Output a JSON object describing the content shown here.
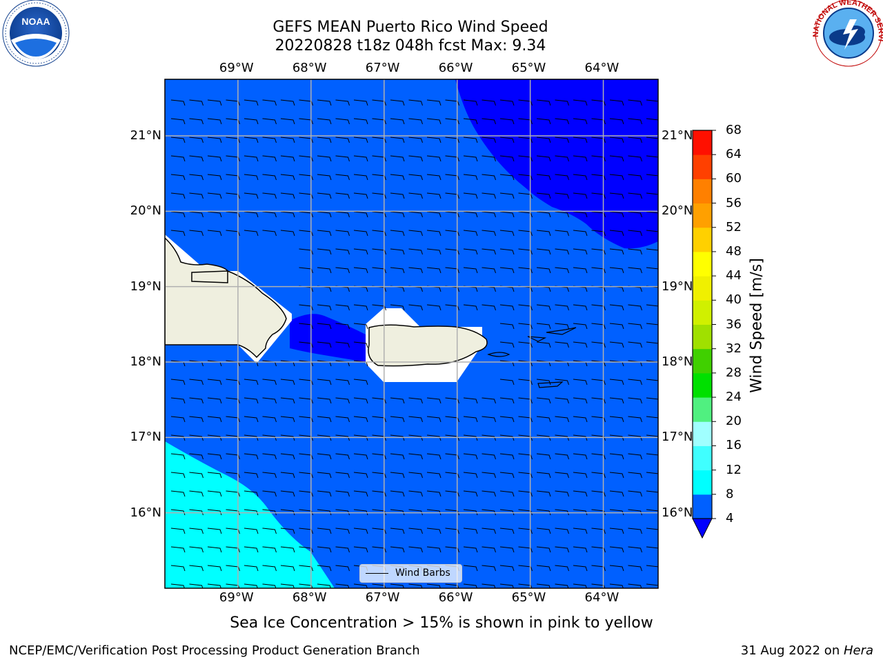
{
  "title": {
    "line1": "GEFS MEAN Puerto Rico Wind Speed",
    "line2": "20220828 t18z 048h fcst   Max: 9.34"
  },
  "axes": {
    "lon_labels": [
      "69°W",
      "68°W",
      "67°W",
      "66°W",
      "65°W",
      "64°W"
    ],
    "lat_labels": [
      "21°N",
      "20°N",
      "19°N",
      "18°N",
      "17°N",
      "16°N"
    ],
    "lon_values": [
      -69,
      -68,
      -67,
      -66,
      -65,
      -64
    ],
    "lat_values": [
      21,
      20,
      19,
      18,
      17,
      16
    ],
    "lon_range": [
      -70.0,
      -63.25
    ],
    "lat_range": [
      15.0,
      21.75
    ]
  },
  "legend": {
    "label": "Wind Barbs"
  },
  "colorbar": {
    "title": "Wind Speed [m/s]",
    "ticks": [
      "4",
      "8",
      "12",
      "16",
      "20",
      "24",
      "28",
      "32",
      "36",
      "40",
      "44",
      "48",
      "52",
      "56",
      "60",
      "64",
      "68"
    ],
    "colors": [
      "#0060ff",
      "#00ffff",
      "#40ffff",
      "#a0ffff",
      "#50f080",
      "#00e000",
      "#40d000",
      "#a0e000",
      "#d0f000",
      "#f0f000",
      "#ffff00",
      "#ffd000",
      "#ffa000",
      "#ff8000",
      "#ff4000",
      "#ff1000",
      "#ff0000"
    ],
    "extend_color": "#0000ff"
  },
  "colors": {
    "ocean": "#0060ff",
    "dark": "#0000ff",
    "cyan": "#00ffff",
    "land": "#efefdf",
    "grid": "#b0b0b0"
  },
  "caption": "Sea Ice Concentration > 15% is shown in pink to yellow",
  "footer": {
    "left": "NCEP/EMC/Verification Post Processing Product Generation Branch",
    "right_prefix": "31 Aug 2022 on ",
    "right_machine": "Hera"
  },
  "logos": {
    "left": "NOAA",
    "right": "NATIONAL WEATHER SERVICE"
  },
  "chart_data": {
    "type": "map",
    "variable": "Wind Speed [m/s]",
    "max": 9.34,
    "wind_barb_heading_deg": 275
  }
}
